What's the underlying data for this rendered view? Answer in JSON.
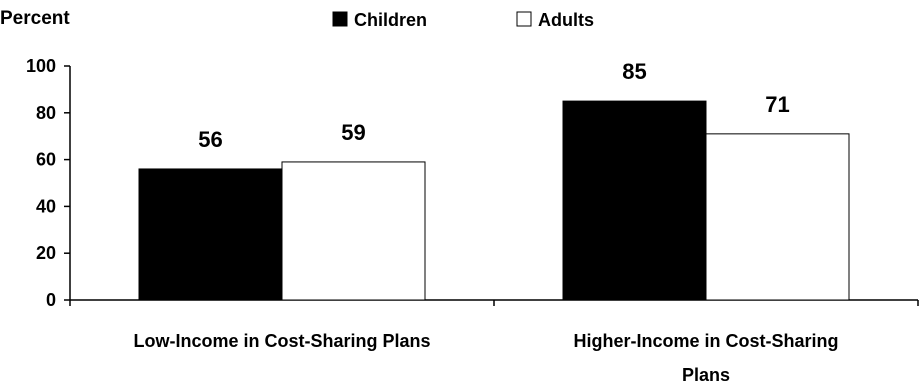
{
  "chart_data": {
    "type": "bar",
    "ylabel": "Percent",
    "ylim": [
      0,
      100
    ],
    "yticks": [
      0,
      20,
      40,
      60,
      80,
      100
    ],
    "grid": false,
    "legend_position": "top",
    "categories": [
      [
        "Low-Income in Cost-Sharing Plans"
      ],
      [
        "Higher-Income in Cost-Sharing",
        "Plans"
      ]
    ],
    "series": [
      {
        "name": "Children",
        "values": [
          56,
          85
        ],
        "color": "#000000"
      },
      {
        "name": "Adults",
        "values": [
          59,
          71
        ],
        "color": "#ffffff"
      }
    ]
  }
}
